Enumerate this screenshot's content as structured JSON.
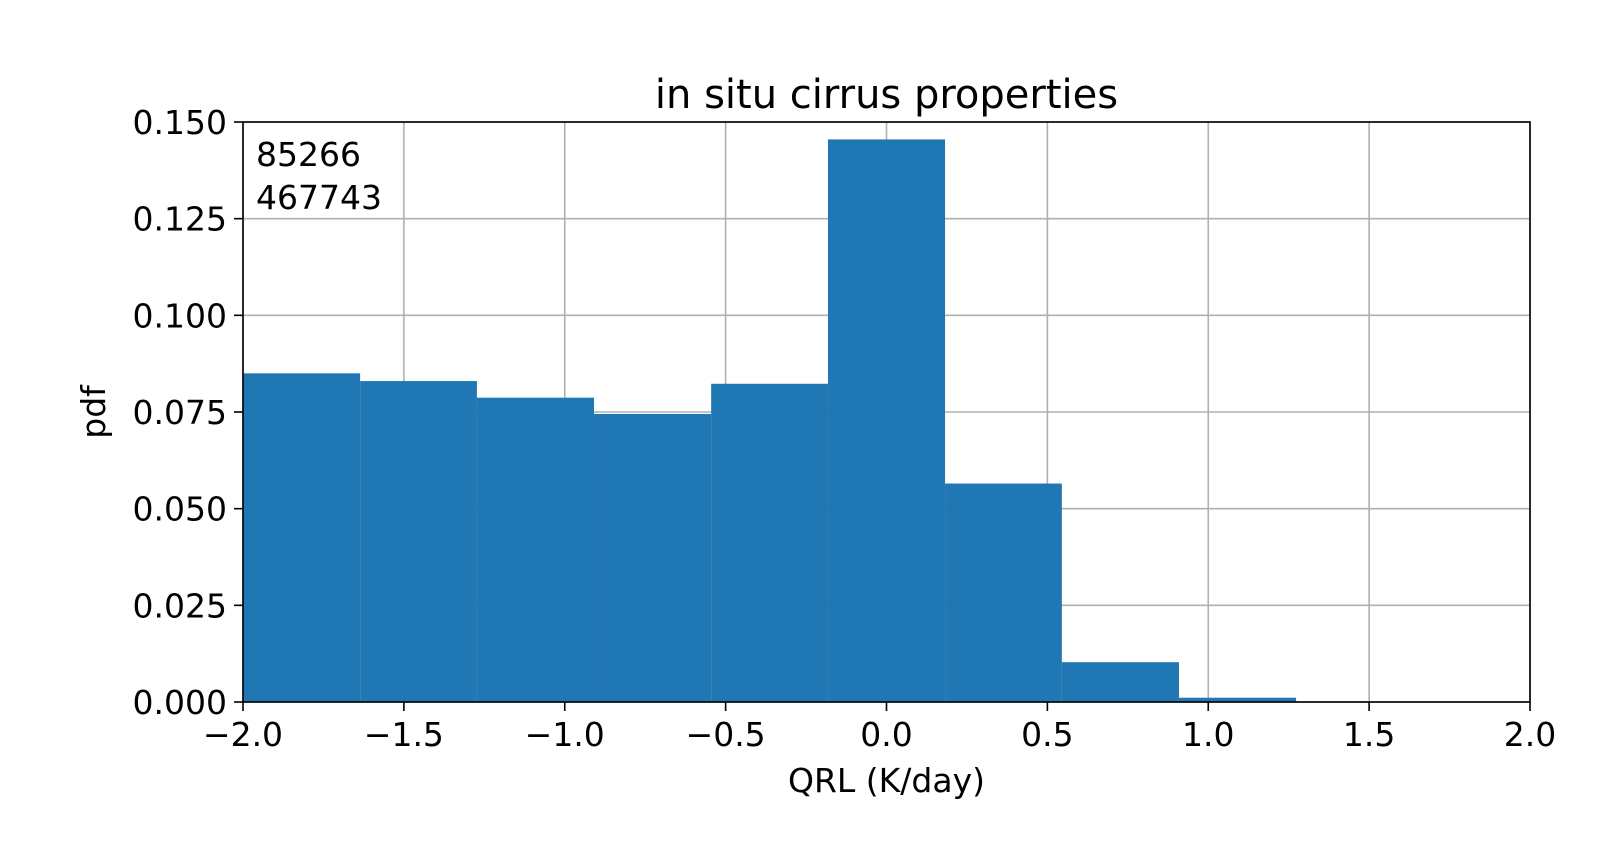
{
  "chart_data": {
    "type": "bar",
    "title": "in situ cirrus properties",
    "xlabel": "QRL (K/day)",
    "ylabel": "pdf",
    "xlim": [
      -2.0,
      2.0
    ],
    "ylim": [
      0.0,
      0.15
    ],
    "grid": true,
    "bar_color": "#1f77b4",
    "x_ticks": [
      -2.0,
      -1.5,
      -1.0,
      -0.5,
      0.0,
      0.5,
      1.0,
      1.5,
      2.0
    ],
    "x_tick_labels": [
      "−2.0",
      "−1.5",
      "−1.0",
      "−0.5",
      "0.0",
      "0.5",
      "1.0",
      "1.5",
      "2.0"
    ],
    "y_ticks": [
      0.0,
      0.025,
      0.05,
      0.075,
      0.1,
      0.125,
      0.15
    ],
    "y_tick_labels": [
      "0.000",
      "0.025",
      "0.050",
      "0.075",
      "0.100",
      "0.125",
      "0.150"
    ],
    "bin_edges": [
      -2.0,
      -1.636,
      -1.273,
      -0.909,
      -0.545,
      -0.182,
      0.182,
      0.545,
      0.909,
      1.273,
      1.636,
      2.0
    ],
    "values": [
      0.085,
      0.083,
      0.0787,
      0.0745,
      0.0823,
      0.1455,
      0.0565,
      0.0103,
      0.0011,
      0.0001,
      0.0
    ],
    "annotations": [
      "85266",
      "467743"
    ]
  }
}
